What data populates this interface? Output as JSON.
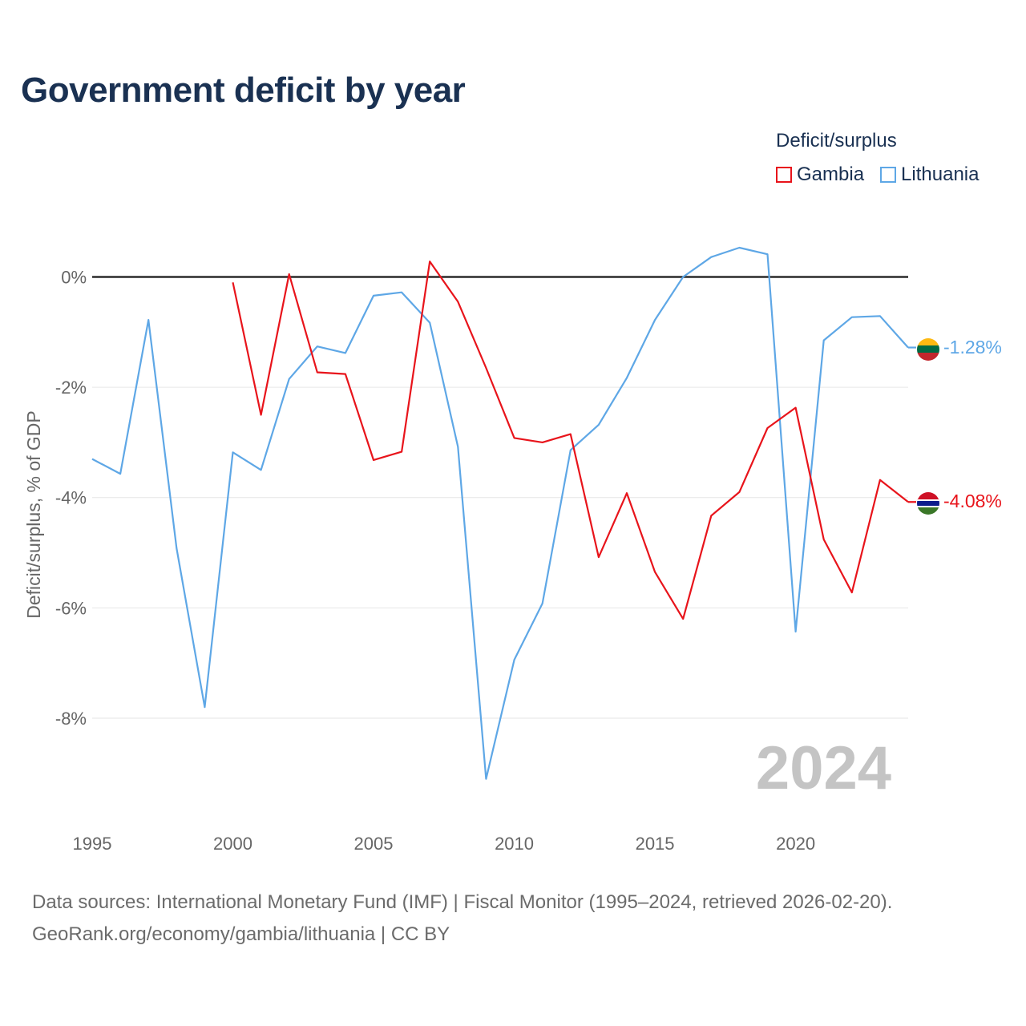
{
  "title": "Government deficit by year",
  "legend": {
    "title": "Deficit/surplus",
    "items": [
      {
        "label": "Gambia",
        "color": "#e8141b"
      },
      {
        "label": "Lithuania",
        "color": "#5ea7e6"
      }
    ]
  },
  "source": {
    "line1": "Data sources: International Monetary Fund (IMF) | Fiscal Monitor (1995–2024, retrieved 2026-02-20).",
    "line2": "GeoRank.org/economy/gambia/lithuania | CC BY"
  },
  "chart_data": {
    "type": "line",
    "title": "Government deficit by year",
    "xlabel": "",
    "ylabel": "Deficit/surplus, % of GDP",
    "watermark_year": "2024",
    "xlim": [
      1995,
      2024
    ],
    "ylim": [
      -9.7,
      1.3
    ],
    "xticks": [
      1995,
      2000,
      2005,
      2010,
      2015,
      2020
    ],
    "yticks": [
      0,
      -2,
      -4,
      -6,
      -8
    ],
    "ytick_labels": [
      "0%",
      "-2%",
      "-4%",
      "-6%",
      "-8%"
    ],
    "grid": true,
    "series": [
      {
        "name": "Gambia",
        "color": "#e8141b",
        "end_label": "-4.08%",
        "x": [
          2000,
          2001,
          2002,
          2003,
          2004,
          2005,
          2006,
          2007,
          2008,
          2009,
          2010,
          2011,
          2012,
          2013,
          2014,
          2015,
          2016,
          2017,
          2018,
          2019,
          2020,
          2021,
          2022,
          2023,
          2024
        ],
        "values": [
          -0.1,
          -2.5,
          0.05,
          -1.73,
          -1.76,
          -3.32,
          -3.17,
          0.28,
          -0.45,
          -1.65,
          -2.92,
          -3.0,
          -2.85,
          -5.08,
          -3.92,
          -5.35,
          -6.2,
          -4.33,
          -3.9,
          -2.74,
          -2.37,
          -4.76,
          -5.72,
          -3.68,
          -4.08
        ]
      },
      {
        "name": "Lithuania",
        "color": "#5ea7e6",
        "end_label": "-1.28%",
        "x": [
          1995,
          1996,
          1997,
          1998,
          1999,
          2000,
          2001,
          2002,
          2003,
          2004,
          2005,
          2006,
          2007,
          2008,
          2009,
          2010,
          2011,
          2012,
          2013,
          2014,
          2015,
          2016,
          2017,
          2018,
          2019,
          2020,
          2021,
          2022,
          2023,
          2024
        ],
        "values": [
          -3.3,
          -3.57,
          -0.78,
          -4.92,
          -7.8,
          -3.18,
          -3.5,
          -1.85,
          -1.26,
          -1.38,
          -0.34,
          -0.28,
          -0.83,
          -3.08,
          -9.1,
          -6.94,
          -5.92,
          -3.14,
          -2.68,
          -1.83,
          -0.78,
          0.0,
          0.36,
          0.53,
          0.41,
          -6.43,
          -1.15,
          -0.73,
          -0.71,
          -1.28
        ]
      }
    ]
  }
}
